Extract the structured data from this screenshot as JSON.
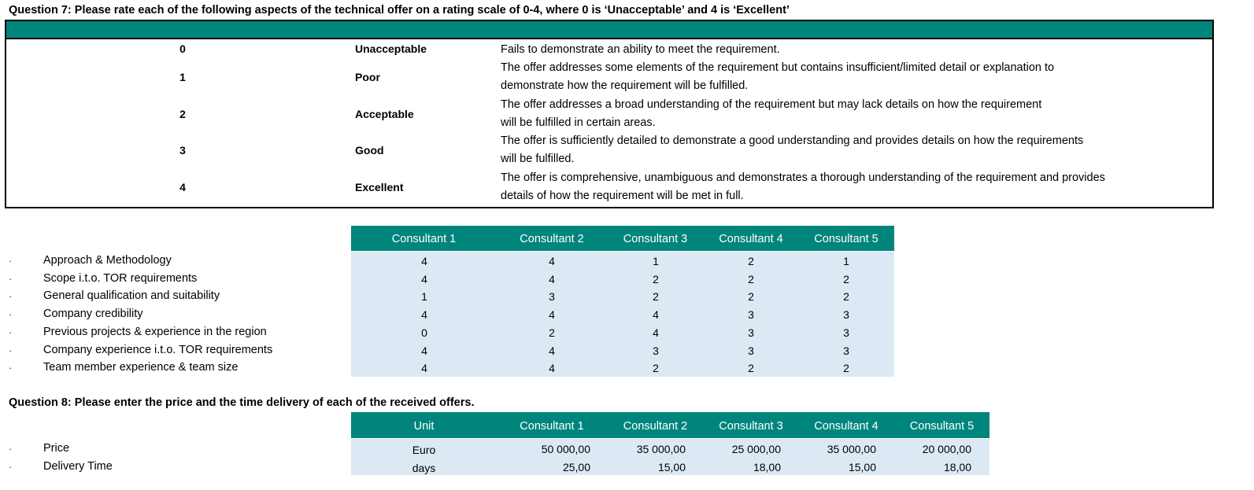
{
  "q7": {
    "title": "Question 7: Please rate each of the following aspects of the technical offer on a rating scale of 0-4, where 0 is ‘Unacceptable’ and 4 is ‘Excellent’",
    "scale": [
      {
        "score": "0",
        "name": "Unacceptable",
        "desc": "Fails to demonstrate an ability to meet the requirement."
      },
      {
        "score": "1",
        "name": "Poor",
        "desc": "The offer addresses some elements of the requirement but contains insufficient/limited detail or explanation to demonstrate how the requirement will be fulfilled."
      },
      {
        "score": "2",
        "name": "Acceptable",
        "desc": "The offer addresses a broad understanding of the requirement but may lack details on how the requirement will be fulfilled in certain areas."
      },
      {
        "score": "3",
        "name": "Good",
        "desc": "The offer is sufficiently detailed to demonstrate a good understanding and provides details on how the requirements will be fulfilled."
      },
      {
        "score": "4",
        "name": "Excellent",
        "desc": "The offer is comprehensive, unambiguous and demonstrates a thorough understanding of the requirement and provides details of how the requirement will be met in full."
      }
    ],
    "columns": [
      "Consultant 1",
      "Consultant 2",
      "Consultant 3",
      "Consultant 4",
      "Consultant 5"
    ],
    "rows": [
      {
        "label": "Approach & Methodology",
        "values": [
          "4",
          "4",
          "1",
          "2",
          "1"
        ]
      },
      {
        "label": "Scope i.t.o. TOR requirements",
        "values": [
          "4",
          "4",
          "2",
          "2",
          "2"
        ]
      },
      {
        "label": "General qualification and suitability",
        "values": [
          "1",
          "3",
          "2",
          "2",
          "2"
        ]
      },
      {
        "label": "Company credibility",
        "values": [
          "4",
          "4",
          "4",
          "3",
          "3"
        ]
      },
      {
        "label": "Previous projects & experience in the region",
        "values": [
          "0",
          "2",
          "4",
          "3",
          "3"
        ]
      },
      {
        "label": "Company experience i.t.o. TOR requirements",
        "values": [
          "4",
          "4",
          "3",
          "3",
          "3"
        ]
      },
      {
        "label": "Team member experience & team size",
        "values": [
          "4",
          "4",
          "2",
          "2",
          "2"
        ]
      }
    ]
  },
  "q8": {
    "title": "Question 8: Please enter the price and the time delivery of each of the received offers.",
    "columns": [
      "Unit",
      "Consultant 1",
      "Consultant 2",
      "Consultant 3",
      "Consultant 4",
      "Consultant 5"
    ],
    "rows": [
      {
        "label": "Price",
        "unit": "Euro",
        "values": [
          "50 000,00",
          "35 000,00",
          "25 000,00",
          "35 000,00",
          "20 000,00"
        ]
      },
      {
        "label": "Delivery Time",
        "unit": "days",
        "values": [
          "25,00",
          "15,00",
          "18,00",
          "15,00",
          "18,00"
        ]
      }
    ]
  },
  "bullet_glyph": "·",
  "colors": {
    "header_teal": "#00857d",
    "body_blue": "#dce9f5"
  }
}
